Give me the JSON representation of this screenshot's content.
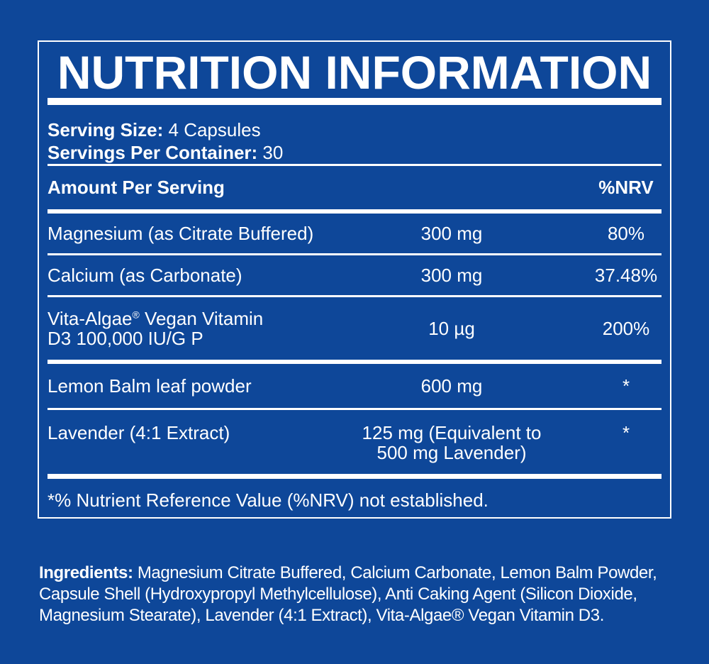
{
  "colors": {
    "background": "#0e4799",
    "panel_border": "#ffffff",
    "text": "#ffffff",
    "divider": "#ffffff"
  },
  "panel": {
    "title": "NUTRITION INFORMATION",
    "footnote": "*% Nutrient Reference Value (%NRV) not established."
  },
  "serving": {
    "size_label": "Serving Size:",
    "size_value": " 4 Capsules",
    "per_container_label": "Servings Per Container:",
    "per_container_value": " 30"
  },
  "header": {
    "amount_label": "Amount Per Serving",
    "nrv_label": "%NRV"
  },
  "rows": [
    {
      "name": "Magnesium (as Citrate Buffered)",
      "amount": "300 mg",
      "nrv": "80%"
    },
    {
      "name": "Calcium (as Carbonate)",
      "amount": "300 mg",
      "nrv": "37.48%"
    },
    {
      "name_pre": "Vita-Algae",
      "reg_mark": "®",
      "name_post": " Vegan Vitamin",
      "name_line2": "D3 100,000 IU/G P",
      "amount": "10 µg",
      "nrv": "200%"
    },
    {
      "name": "Lemon Balm leaf powder",
      "amount": "600 mg",
      "nrv": "*"
    },
    {
      "name": "Lavender (4:1 Extract)",
      "amount_line1": "125 mg (Equivalent to",
      "amount_line2": "500 mg Lavender)",
      "nrv": "*"
    }
  ],
  "ingredients": {
    "label": "Ingredients:",
    "line1": " Magnesium Citrate Buffered, Calcium Carbonate, Lemon Balm Powder,",
    "line2": "Capsule Shell (Hydroxypropyl Methylcellulose), Anti Caking Agent (Silicon Dioxide,",
    "line3": "Magnesium Stearate), Lavender (4:1 Extract), Vita-Algae® Vegan Vitamin D3."
  }
}
